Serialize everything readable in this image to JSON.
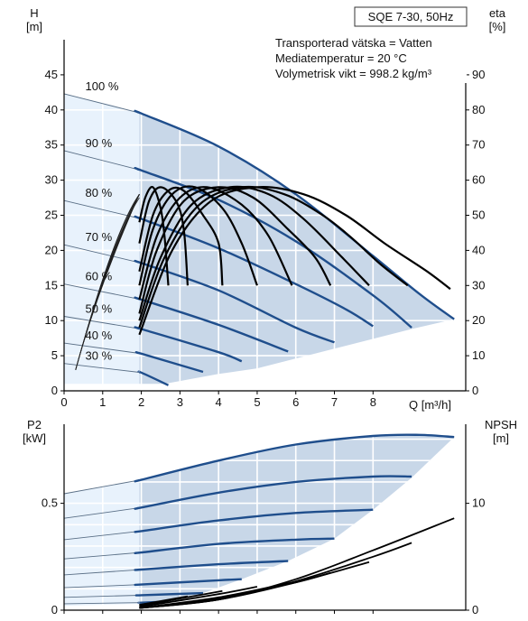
{
  "chart_data": [
    {
      "type": "line",
      "title": "SQE 7-30, 50Hz",
      "annotations": [
        "Transporterad vätska = Vatten",
        "Mediatemperatur = 20 °C",
        "Volymetrisk vikt = 998.2 kg/m³"
      ],
      "y_left": {
        "label": "H",
        "unit": "[m]",
        "lim": [
          0,
          50
        ],
        "ticks": [
          0,
          5,
          10,
          15,
          20,
          25,
          30,
          35,
          40,
          45
        ]
      },
      "y_right": {
        "label": "eta",
        "unit": "[%]",
        "lim": [
          0,
          100
        ],
        "ticks": [
          0,
          10,
          20,
          30,
          40,
          50,
          60,
          70,
          80,
          90
        ]
      },
      "x": {
        "label": "Q [m³/h]",
        "lim": [
          0,
          10.4
        ],
        "ticks": [
          0,
          1,
          2,
          3,
          4,
          5,
          6,
          7,
          8
        ]
      },
      "grid": true,
      "colors": {
        "curve": "#1f4e8c",
        "eta": "#000000",
        "region": "#c8d7e8",
        "region_light": "#e8f2fc",
        "thin": "#5a6f86"
      },
      "head_series": [
        {
          "name": "100 %",
          "points": [
            [
              0,
              42.3
            ],
            [
              2,
              39.5
            ],
            [
              4,
              34.8
            ],
            [
              6,
              28.0
            ],
            [
              8,
              19.2
            ],
            [
              9.2,
              13.8
            ],
            [
              10.1,
              10.2
            ]
          ]
        },
        {
          "name": "90 %",
          "points": [
            [
              0,
              34.2
            ],
            [
              2,
              31.4
            ],
            [
              4,
              27.2
            ],
            [
              6,
              21.3
            ],
            [
              8,
              13.6
            ],
            [
              9.0,
              9.0
            ]
          ]
        },
        {
          "name": "80 %",
          "points": [
            [
              0,
              27.1
            ],
            [
              2,
              24.5
            ],
            [
              4,
              20.3
            ],
            [
              6,
              15.2
            ],
            [
              7.3,
              11.6
            ],
            [
              8.0,
              9.2
            ]
          ]
        },
        {
          "name": "70 %",
          "points": [
            [
              0,
              20.8
            ],
            [
              2,
              18.2
            ],
            [
              4,
              14.3
            ],
            [
              6,
              9.0
            ],
            [
              7.0,
              6.9
            ]
          ]
        },
        {
          "name": "60 %",
          "points": [
            [
              0,
              15.2
            ],
            [
              2,
              13.0
            ],
            [
              4,
              9.4
            ],
            [
              5.8,
              5.6
            ]
          ]
        },
        {
          "name": "50 %",
          "points": [
            [
              0,
              10.6
            ],
            [
              2,
              8.8
            ],
            [
              4,
              5.5
            ],
            [
              4.6,
              4.2
            ]
          ]
        },
        {
          "name": "40 %",
          "points": [
            [
              0,
              6.8
            ],
            [
              2,
              5.3
            ],
            [
              3.6,
              2.7
            ]
          ]
        },
        {
          "name": "30 %",
          "points": [
            [
              0,
              3.9
            ],
            [
              2,
              2.6
            ],
            [
              2.7,
              0.8
            ]
          ]
        }
      ],
      "operating_region": [
        [
          1.95,
          39.6
        ],
        [
          10.1,
          10.2
        ],
        [
          9.0,
          8.8
        ],
        [
          7.0,
          6.0
        ],
        [
          5.0,
          3.2
        ],
        [
          4.0,
          2.4
        ],
        [
          3.0,
          1.4
        ],
        [
          2.6,
          1.0
        ],
        [
          1.95,
          1.0
        ]
      ],
      "eta_series": [
        {
          "points": [
            [
              1.95,
              16
            ],
            [
              2.8,
              40
            ],
            [
              3.8,
              54
            ],
            [
              5.0,
              58
            ],
            [
              6.2,
              56
            ],
            [
              7.3,
              50
            ],
            [
              8.3,
              42
            ],
            [
              9.4,
              34
            ],
            [
              10.0,
              29
            ]
          ]
        },
        {
          "points": [
            [
              1.95,
              18
            ],
            [
              2.6,
              38
            ],
            [
              3.5,
              53
            ],
            [
              4.6,
              58
            ],
            [
              5.7,
              56
            ],
            [
              6.7,
              50
            ],
            [
              7.4,
              44
            ],
            [
              8.2,
              36
            ],
            [
              8.9,
              30
            ]
          ]
        },
        {
          "points": [
            [
              1.95,
              20
            ],
            [
              2.5,
              38
            ],
            [
              3.3,
              53
            ],
            [
              4.3,
              58
            ],
            [
              5.3,
              56
            ],
            [
              6.2,
              49
            ],
            [
              7.2,
              38
            ],
            [
              7.9,
              30
            ]
          ]
        },
        {
          "points": [
            [
              1.95,
              22
            ],
            [
              2.4,
              40
            ],
            [
              3.1,
              54
            ],
            [
              4.0,
              58
            ],
            [
              4.9,
              55
            ],
            [
              5.8,
              46
            ],
            [
              6.5,
              38
            ],
            [
              6.9,
              30
            ]
          ]
        },
        {
          "points": [
            [
              1.95,
              26
            ],
            [
              2.4,
              44
            ],
            [
              3.0,
              55
            ],
            [
              3.7,
              58
            ],
            [
              4.6,
              53
            ],
            [
              5.3,
              44
            ],
            [
              5.9,
              30
            ]
          ]
        },
        {
          "points": [
            [
              1.95,
              30
            ],
            [
              2.3,
              46
            ],
            [
              2.8,
              56
            ],
            [
              3.4,
              58
            ],
            [
              4.1,
              52
            ],
            [
              4.6,
              42
            ],
            [
              5.0,
              30
            ]
          ]
        },
        {
          "points": [
            [
              1.95,
              34
            ],
            [
              2.3,
              50
            ],
            [
              2.7,
              57
            ],
            [
              3.1,
              57
            ],
            [
              3.6,
              50
            ],
            [
              4.0,
              42
            ],
            [
              4.1,
              30
            ]
          ]
        },
        {
          "points": [
            [
              1.95,
              42
            ],
            [
              2.2,
              54
            ],
            [
              2.5,
              58
            ],
            [
              2.9,
              54
            ],
            [
              3.1,
              46
            ],
            [
              3.2,
              30
            ]
          ]
        },
        {
          "points": [
            [
              1.95,
              48
            ],
            [
              2.1,
              55
            ],
            [
              2.3,
              58
            ],
            [
              2.5,
              52
            ],
            [
              2.6,
              44
            ],
            [
              2.7,
              30
            ]
          ]
        }
      ]
    },
    {
      "type": "line",
      "y_left": {
        "label": "P2",
        "unit": "[kW]",
        "lim": [
          0,
          0.87
        ],
        "ticks": [
          0,
          0.5
        ]
      },
      "y_right": {
        "label": "NPSH",
        "unit": "[m]",
        "lim": [
          0,
          17.4
        ],
        "ticks": [
          0,
          10
        ]
      },
      "x": {
        "lim": [
          0,
          10.4
        ]
      },
      "grid": true,
      "power_series": [
        {
          "points": [
            [
              0,
              0.545
            ],
            [
              2,
              0.61
            ],
            [
              4,
              0.7
            ],
            [
              6,
              0.775
            ],
            [
              8,
              0.815
            ],
            [
              9.2,
              0.82
            ],
            [
              10.1,
              0.81
            ]
          ]
        },
        {
          "points": [
            [
              0,
              0.43
            ],
            [
              2,
              0.48
            ],
            [
              4,
              0.55
            ],
            [
              6,
              0.6
            ],
            [
              8,
              0.625
            ],
            [
              9.0,
              0.625
            ]
          ]
        },
        {
          "points": [
            [
              0,
              0.33
            ],
            [
              2,
              0.37
            ],
            [
              4,
              0.42
            ],
            [
              6,
              0.455
            ],
            [
              8,
              0.47
            ]
          ]
        },
        {
          "points": [
            [
              0,
              0.24
            ],
            [
              2,
              0.27
            ],
            [
              4,
              0.31
            ],
            [
              6,
              0.33
            ],
            [
              7.0,
              0.335
            ]
          ]
        },
        {
          "points": [
            [
              0,
              0.165
            ],
            [
              2,
              0.19
            ],
            [
              4,
              0.215
            ],
            [
              5.8,
              0.23
            ]
          ]
        },
        {
          "points": [
            [
              0,
              0.105
            ],
            [
              2,
              0.12
            ],
            [
              4,
              0.14
            ],
            [
              4.6,
              0.145
            ]
          ]
        },
        {
          "points": [
            [
              0,
              0.06
            ],
            [
              2,
              0.07
            ],
            [
              3.6,
              0.08
            ]
          ]
        },
        {
          "points": [
            [
              0,
              0.03
            ],
            [
              2,
              0.035
            ],
            [
              2.7,
              0.04
            ]
          ]
        }
      ],
      "power_region": [
        [
          1.95,
          0.61
        ],
        [
          4,
          0.7
        ],
        [
          6,
          0.775
        ],
        [
          8,
          0.815
        ],
        [
          9.2,
          0.82
        ],
        [
          10.1,
          0.81
        ],
        [
          9.0,
          0.62
        ],
        [
          8.0,
          0.47
        ],
        [
          7.0,
          0.335
        ],
        [
          5.8,
          0.23
        ],
        [
          4.6,
          0.145
        ],
        [
          3.6,
          0.08
        ],
        [
          2.7,
          0.04
        ],
        [
          1.95,
          0.035
        ]
      ],
      "npsh_series": [
        {
          "points": [
            [
              1.95,
              0.2
            ],
            [
              4,
              1.0
            ],
            [
              6,
              2.9
            ],
            [
              8,
              5.6
            ],
            [
              10.1,
              8.6
            ]
          ]
        },
        {
          "points": [
            [
              1.95,
              0.2
            ],
            [
              4,
              1.0
            ],
            [
              6,
              2.7
            ],
            [
              8,
              5.0
            ],
            [
              9.0,
              6.3
            ]
          ]
        },
        {
          "points": [
            [
              1.95,
              0.2
            ],
            [
              4,
              1.0
            ],
            [
              6,
              2.6
            ],
            [
              7.9,
              4.5
            ]
          ]
        },
        {
          "points": [
            [
              1.95,
              0.2
            ],
            [
              4,
              1.1
            ],
            [
              6,
              2.6
            ],
            [
              6.9,
              3.5
            ]
          ]
        },
        {
          "points": [
            [
              1.95,
              0.2
            ],
            [
              4,
              1.2
            ],
            [
              5.9,
              2.6
            ]
          ]
        },
        {
          "points": [
            [
              1.95,
              0.3
            ],
            [
              4,
              1.5
            ],
            [
              5.0,
              2.2
            ]
          ]
        },
        {
          "points": [
            [
              1.95,
              0.4
            ],
            [
              4.1,
              1.8
            ]
          ]
        },
        {
          "points": [
            [
              1.95,
              0.5
            ],
            [
              3.2,
              1.3
            ]
          ]
        },
        {
          "points": [
            [
              1.95,
              0.5
            ],
            [
              2.7,
              0.9
            ]
          ]
        }
      ]
    }
  ]
}
